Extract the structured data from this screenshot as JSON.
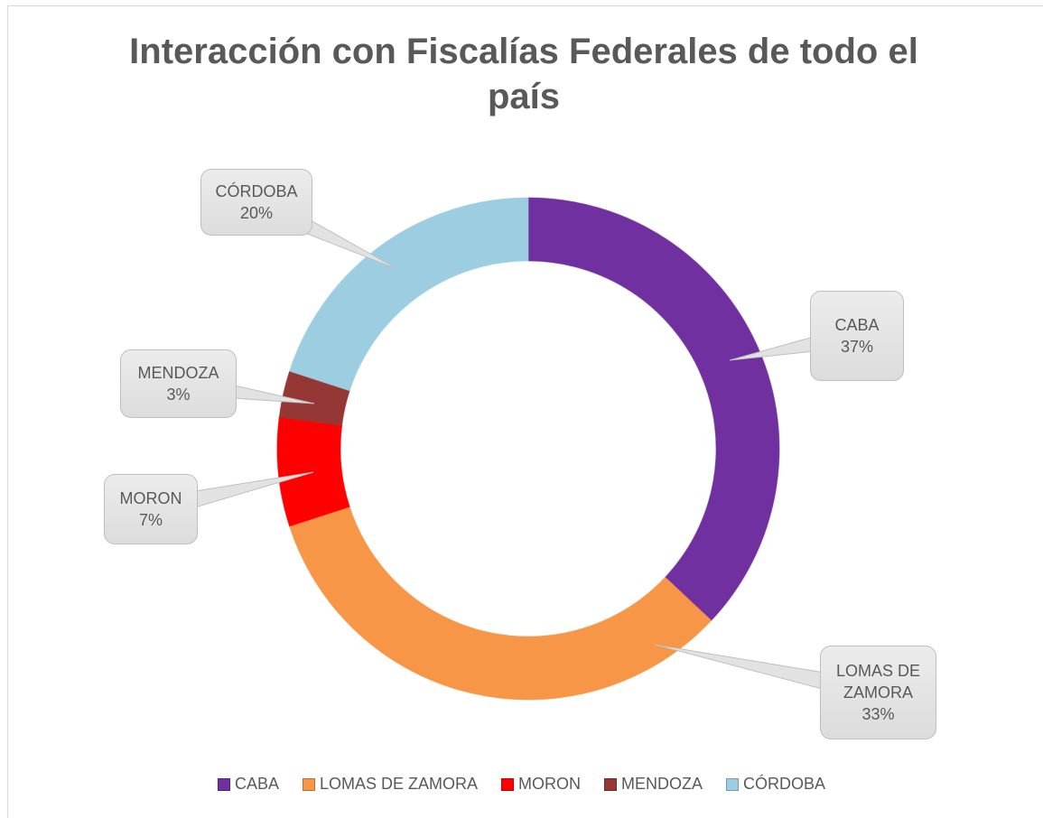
{
  "chart_data": {
    "type": "donut",
    "title": "Interacción con Fiscalías Federales de todo el país",
    "categories": [
      "CABA",
      "LOMAS DE ZAMORA",
      "MORON",
      "MENDOZA",
      "CÓRDOBA"
    ],
    "values": [
      37,
      33,
      7,
      3,
      20
    ],
    "value_labels": [
      "37%",
      "33%",
      "7%",
      "3%",
      "20%"
    ],
    "colors": [
      "#7030a0",
      "#f79646",
      "#ff0000",
      "#953735",
      "#9ccde0"
    ],
    "legend": "bottom"
  }
}
